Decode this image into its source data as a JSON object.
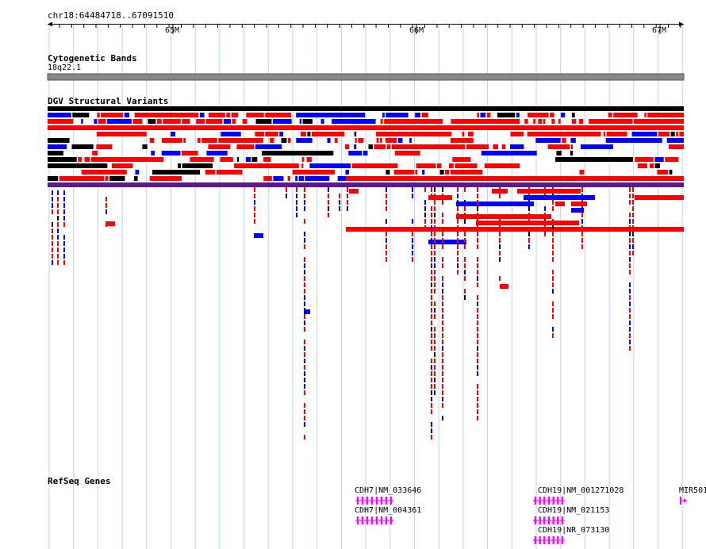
{
  "region": "chr18:64484718..67091510",
  "ruler": {
    "ticks": [
      "65M",
      "66M",
      "67M"
    ]
  },
  "tracks": {
    "cytoband": {
      "title": "Cytogenetic Bands",
      "band": "18q22.1"
    },
    "dgv": {
      "title": "DGV Structural Variants"
    },
    "refseq": {
      "title": "RefSeq Genes"
    }
  },
  "genes": [
    {
      "label": "CDH7|NM_033646",
      "strand": "+"
    },
    {
      "label": "CDH7|NM_004361",
      "strand": "+"
    },
    {
      "label": "CDH19|NM_001271028",
      "strand": "-"
    },
    {
      "label": "CDH19|NM_021153",
      "strand": "-"
    },
    {
      "label": "CDH19|NR_073130",
      "strand": "-"
    },
    {
      "label": "MIR501",
      "strand": "+"
    }
  ],
  "colors": {
    "gain": "#ff0000",
    "loss": "#0000ff",
    "other": "#000000",
    "inversion": "#5a1a8a",
    "complex": "#8b4513",
    "gene": "#ff00ff",
    "gridline": "#b7d4ee",
    "band": "#888888"
  }
}
